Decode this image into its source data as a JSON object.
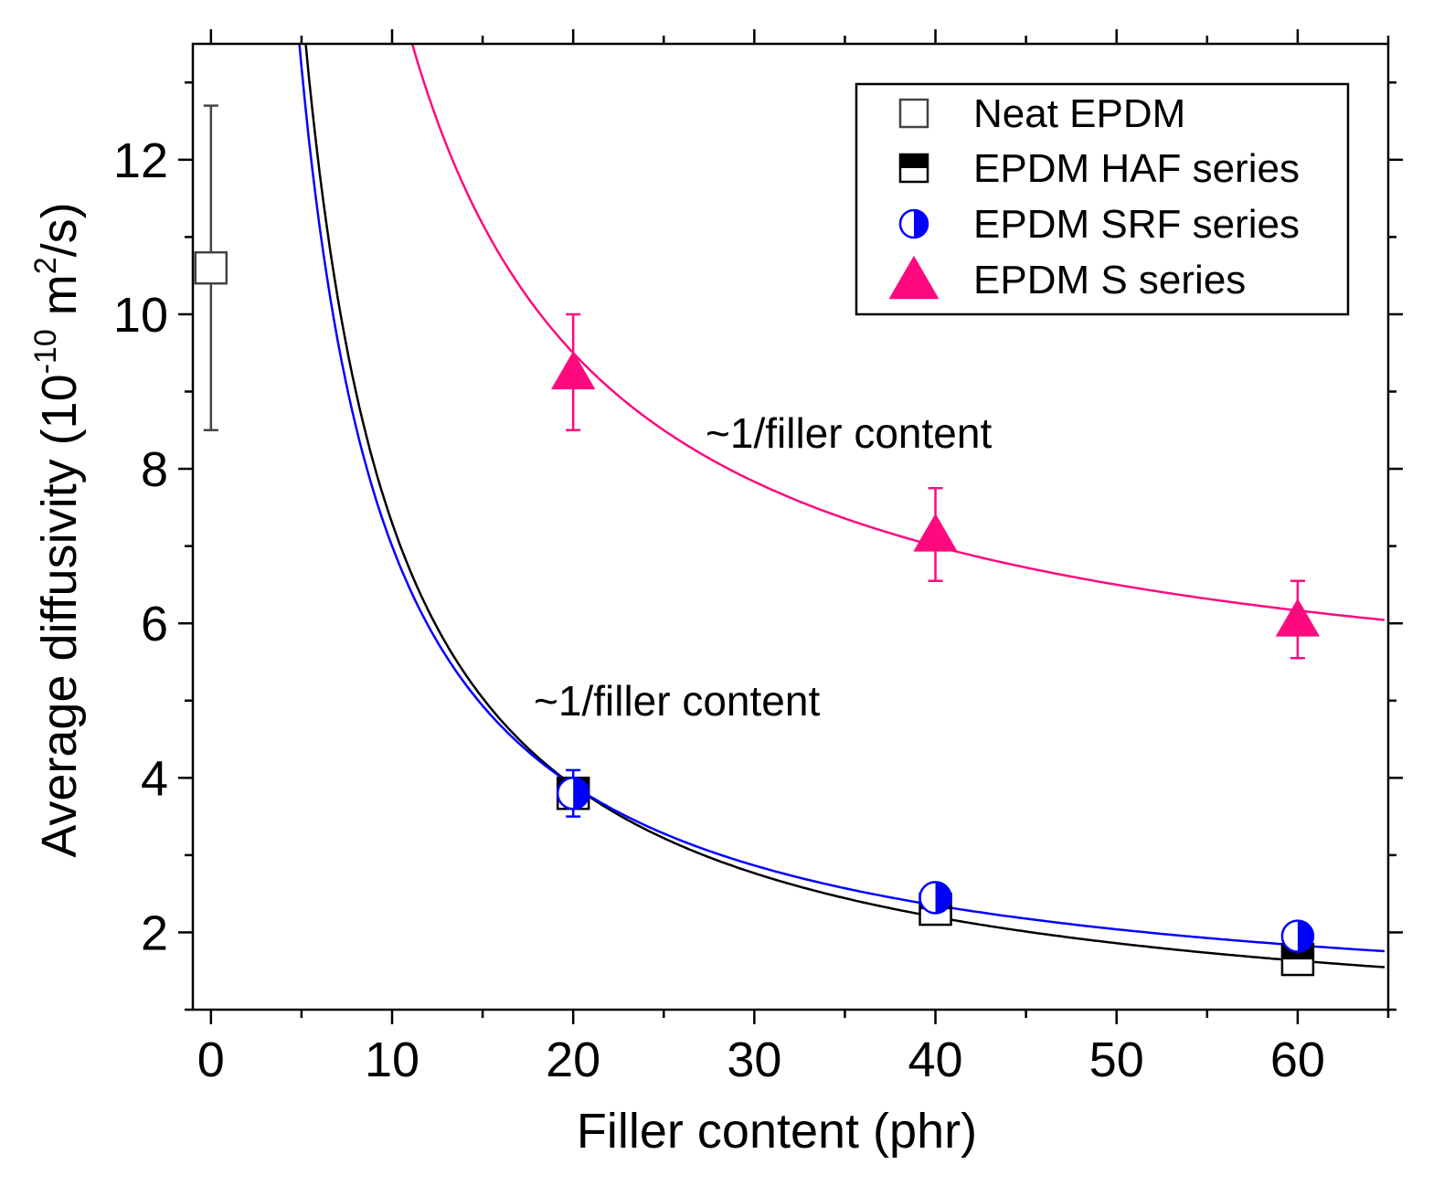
{
  "chart_data": {
    "type": "scatter",
    "xlabel": "Filler content (phr)",
    "ylabel": {
      "main": "Average diffusivity (10",
      "exp1": "-10",
      "mid": " m",
      "exp2": "2",
      "end": "/s)"
    },
    "xlim": [
      -1,
      65
    ],
    "ylim": [
      1,
      13.5
    ],
    "xticks": [
      "0",
      "10",
      "20",
      "30",
      "40",
      "50",
      "60"
    ],
    "yticks": [
      "2",
      "4",
      "6",
      "8",
      "10",
      "12"
    ],
    "series": [
      {
        "name": "Neat EPDM",
        "marker": "open-square",
        "color": "#444444",
        "x": [
          0
        ],
        "y": [
          10.6
        ],
        "yerr": [
          2.1
        ]
      },
      {
        "name": "EPDM HAF series",
        "marker": "half-filled-square",
        "color": "#000000",
        "x": [
          20,
          40,
          60
        ],
        "y": [
          3.8,
          2.3,
          1.65
        ],
        "yerr": [
          0.15,
          0.1,
          0.12
        ],
        "fit": {
          "a": 0.5,
          "b": 68.0
        }
      },
      {
        "name": "EPDM SRF series",
        "marker": "half-filled-circle",
        "color": "#0000ff",
        "x": [
          20,
          40,
          60
        ],
        "y": [
          3.8,
          2.45,
          1.95
        ],
        "yerr": [
          0.3,
          0.1,
          0.1
        ],
        "fit": {
          "a": 0.8,
          "b": 62.0
        }
      },
      {
        "name": "EPDM S series",
        "marker": "filled-triangle",
        "color": "#ff0a7e",
        "x": [
          20,
          40,
          60
        ],
        "y": [
          9.25,
          7.15,
          6.05
        ],
        "yerr": [
          0.75,
          0.6,
          0.5
        ],
        "fit": {
          "a": 4.5,
          "b": 100.0
        }
      }
    ],
    "annotations": [
      {
        "text": "~1/filler content",
        "x": 25,
        "y": 8.35
      },
      {
        "text": "~1/filler content",
        "x": 15.5,
        "y": 4.9
      }
    ],
    "legend_position": "top-right"
  }
}
